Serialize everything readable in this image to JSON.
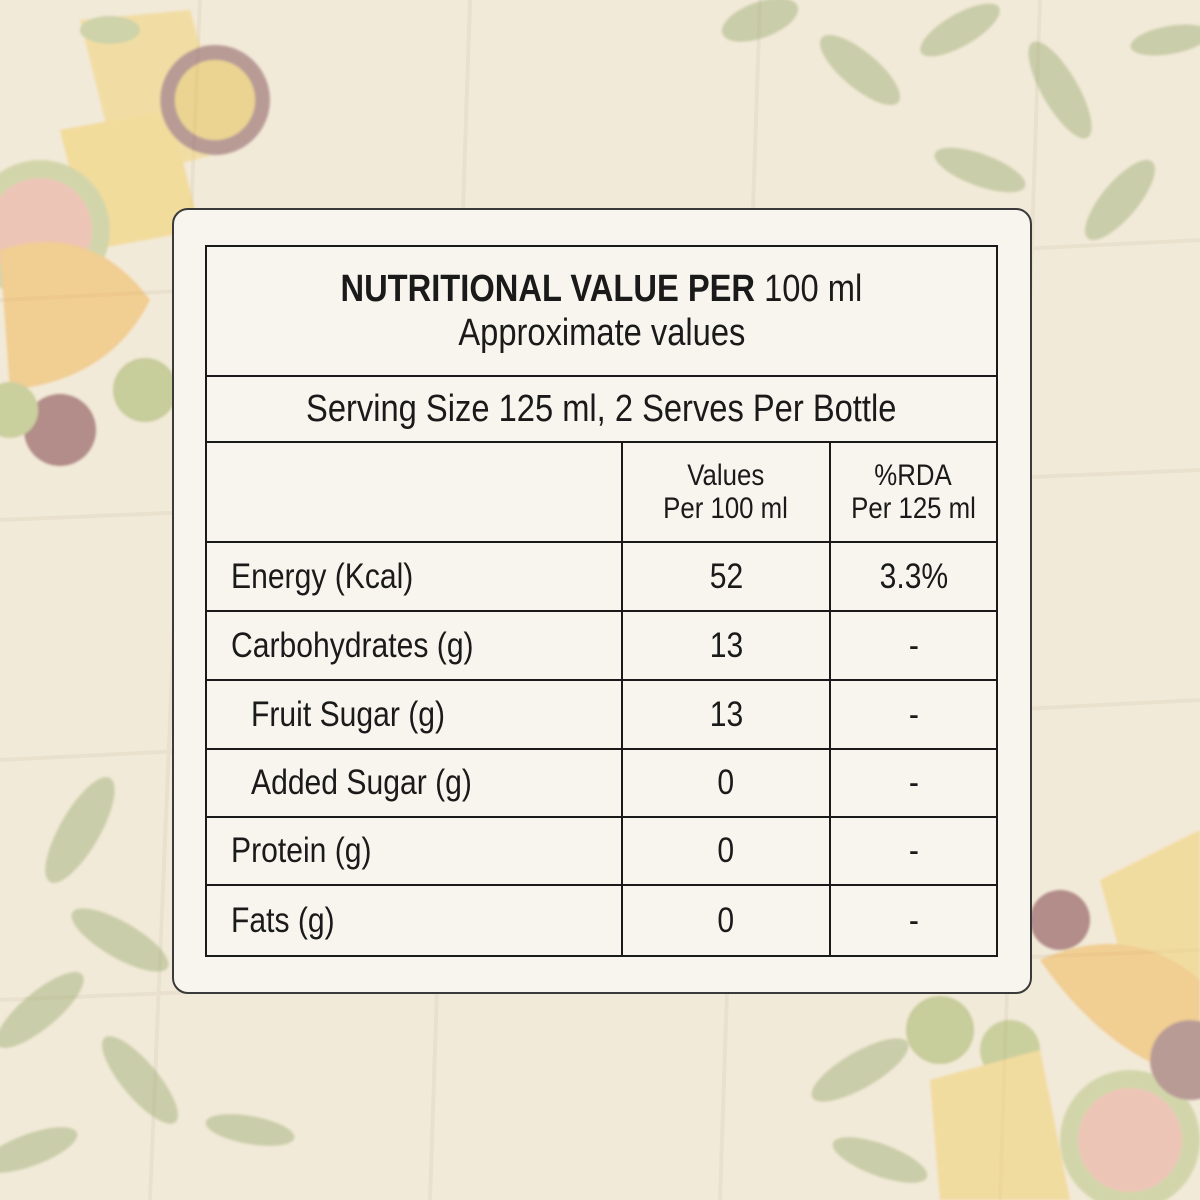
{
  "label": {
    "title_bold": "NUTRITIONAL VALUE PER",
    "title_unit": "100 ml",
    "subtitle": "Approximate values",
    "serving": "Serving Size 125 ml, 2 Serves Per Bottle",
    "columns": {
      "values_line1": "Values",
      "values_line2": "Per 100 ml",
      "rda_line1": "%RDA",
      "rda_line2": "Per 125 ml"
    },
    "rows": [
      {
        "nutrient": "Energy (Kcal)",
        "value": "52",
        "rda": "3.3%"
      },
      {
        "nutrient": "Carbohydrates (g)",
        "value": "13",
        "rda": "-"
      },
      {
        "nutrient": "Fruit Sugar (g)",
        "value": "13",
        "rda": "-"
      },
      {
        "nutrient": "Added Sugar (g)",
        "value": "0",
        "rda": "-"
      },
      {
        "nutrient": "Protein (g)",
        "value": "0",
        "rda": "-"
      },
      {
        "nutrient": "Fats (g)",
        "value": "0",
        "rda": "-"
      }
    ]
  },
  "colors": {
    "background": "#f2ead8",
    "card": "#f8f5ee",
    "ink": "#1a1a1a",
    "leaf": "#a9b584",
    "fruit_yellow": "#f1cf72",
    "fruit_orange": "#f0b65a",
    "guava_pink": "#e9a69b",
    "passion_purple": "#8a5a62"
  }
}
